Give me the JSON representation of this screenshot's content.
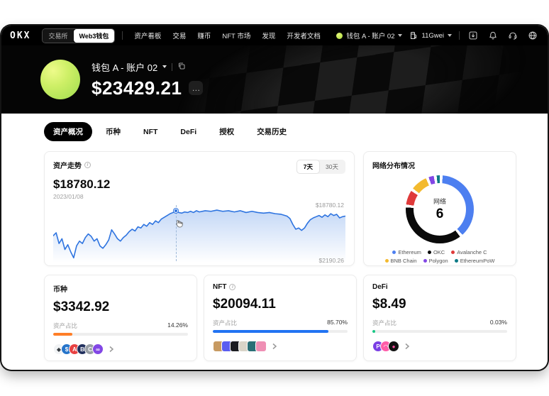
{
  "navbar": {
    "logo": "OKX",
    "toggle": {
      "exchange": "交易所",
      "web3_wallet": "Web3钱包"
    },
    "links": [
      "资产看板",
      "交易",
      "赚币",
      "NFT 市场",
      "发现",
      "开发者文档"
    ],
    "wallet_selector": {
      "label": "钱包 A - 账户 02"
    },
    "gas": {
      "label": "11Gwei"
    }
  },
  "hero": {
    "wallet_name": "钱包 A - 账户 02",
    "balance": "$23429.21",
    "more_label": "…"
  },
  "tabs": [
    "资产概况",
    "币种",
    "NFT",
    "DeFi",
    "授权",
    "交易历史"
  ],
  "chart_data": [
    {
      "type": "line",
      "title": "资产走势",
      "current_value": "$18780.12",
      "current_date": "2023/01/08",
      "range_options": [
        "7天",
        "30天"
      ],
      "selected_range": "7天",
      "y_max_label": "$18780.12",
      "y_min_label": "$2190.26",
      "ylim": [
        2190.26,
        18780.12
      ],
      "line_color": "#2e74e0",
      "cursor_x_pct": 42,
      "cursor_y_pct": 13,
      "points": [
        [
          0,
          55
        ],
        [
          1,
          50
        ],
        [
          2,
          68
        ],
        [
          3,
          60
        ],
        [
          4,
          78
        ],
        [
          5,
          70
        ],
        [
          6,
          82
        ],
        [
          7,
          92
        ],
        [
          8,
          72
        ],
        [
          9,
          64
        ],
        [
          10,
          68
        ],
        [
          11,
          58
        ],
        [
          12,
          52
        ],
        [
          13,
          56
        ],
        [
          14,
          64
        ],
        [
          15,
          60
        ],
        [
          16,
          72
        ],
        [
          17,
          76
        ],
        [
          18,
          70
        ],
        [
          19,
          62
        ],
        [
          20,
          45
        ],
        [
          21,
          52
        ],
        [
          22,
          60
        ],
        [
          23,
          64
        ],
        [
          24,
          58
        ],
        [
          25,
          54
        ],
        [
          26,
          48
        ],
        [
          27,
          44
        ],
        [
          28,
          47
        ],
        [
          29,
          40
        ],
        [
          30,
          42
        ],
        [
          31,
          36
        ],
        [
          32,
          39
        ],
        [
          33,
          33
        ],
        [
          34,
          36
        ],
        [
          35,
          30
        ],
        [
          36,
          33
        ],
        [
          37,
          27
        ],
        [
          38,
          24
        ],
        [
          39,
          21
        ],
        [
          40,
          18
        ],
        [
          41,
          16
        ],
        [
          42,
          13
        ],
        [
          43,
          16
        ],
        [
          44,
          17
        ],
        [
          45,
          15
        ],
        [
          46,
          16
        ],
        [
          47,
          14
        ],
        [
          48,
          16
        ],
        [
          49,
          13
        ],
        [
          50,
          15
        ],
        [
          52,
          13
        ],
        [
          54,
          14
        ],
        [
          56,
          12
        ],
        [
          58,
          14
        ],
        [
          60,
          13
        ],
        [
          62,
          15
        ],
        [
          64,
          13
        ],
        [
          66,
          16
        ],
        [
          68,
          14
        ],
        [
          70,
          16
        ],
        [
          72,
          17
        ],
        [
          74,
          16
        ],
        [
          76,
          18
        ],
        [
          78,
          19
        ],
        [
          80,
          22
        ],
        [
          81,
          26
        ],
        [
          82,
          36
        ],
        [
          83,
          44
        ],
        [
          84,
          42
        ],
        [
          85,
          46
        ],
        [
          86,
          42
        ],
        [
          87,
          34
        ],
        [
          88,
          28
        ],
        [
          89,
          25
        ],
        [
          90,
          23
        ],
        [
          91,
          21
        ],
        [
          92,
          24
        ],
        [
          93,
          20
        ],
        [
          94,
          23
        ],
        [
          95,
          18
        ],
        [
          96,
          21
        ],
        [
          97,
          19
        ],
        [
          98,
          25
        ],
        [
          99,
          23
        ],
        [
          100,
          22
        ]
      ]
    },
    {
      "type": "donut",
      "title": "网络分布情况",
      "center_label": "网络",
      "center_value": "6",
      "legend_position": "bottom",
      "segments": [
        {
          "name": "Ethereum",
          "color": "#4d7ff0",
          "pct": 38
        },
        {
          "name": "OKC",
          "color": "#0a0a0a",
          "pct": 37
        },
        {
          "name": "Avalanche C",
          "color": "#df3a3a",
          "pct": 7
        },
        {
          "name": "BNB Chain",
          "color": "#f3ba2f",
          "pct": 8
        },
        {
          "name": "Polygon",
          "color": "#8247e5",
          "pct": 2.5
        },
        {
          "name": "EthereumPoW",
          "color": "#0c7a86",
          "pct": 1.5
        }
      ]
    }
  ],
  "asset_cards": [
    {
      "title": "币种",
      "value": "$3342.92",
      "share_label": "资产占比",
      "share_text": "14.26%",
      "bar_width": "14.26%",
      "bar_color": "#ff7e27",
      "icons": [
        {
          "bg": "#f1f3f5",
          "fg": "#343a40",
          "glyph": "◆"
        },
        {
          "bg": "#2775ca",
          "fg": "#ffffff",
          "glyph": "$"
        },
        {
          "bg": "#e84142",
          "fg": "#ffffff",
          "glyph": "A"
        },
        {
          "bg": "#22315e",
          "fg": "#ffffff",
          "glyph": "B"
        },
        {
          "bg": "#9aa0a6",
          "fg": "#ffffff",
          "glyph": "C"
        },
        {
          "bg": "#8247e5",
          "fg": "#ffffff",
          "glyph": "∞"
        }
      ]
    },
    {
      "title": "NFT",
      "value": "$20094.11",
      "share_label": "资产占比",
      "share_text": "85.70%",
      "bar_width": "85.7%",
      "bar_color": "#2173f2",
      "thumbs": [
        "#c79a62",
        "#5a5df0",
        "#1c1d22",
        "#d9d4c8",
        "#2a6f76",
        "#ef8fb4"
      ]
    },
    {
      "title": "DeFi",
      "value": "$8.49",
      "share_label": "资产占比",
      "share_text": "0.03%",
      "bar_width": "2%",
      "bar_color": "#16c784",
      "icons": [
        {
          "bg": "#7b3fe4",
          "fg": "#ffffff",
          "glyph": "P"
        },
        {
          "bg": "#ff5ca8",
          "fg": "#ffffff",
          "glyph": "◠"
        },
        {
          "bg": "#121212",
          "fg": "#ff4fa0",
          "glyph": "●"
        }
      ]
    }
  ]
}
